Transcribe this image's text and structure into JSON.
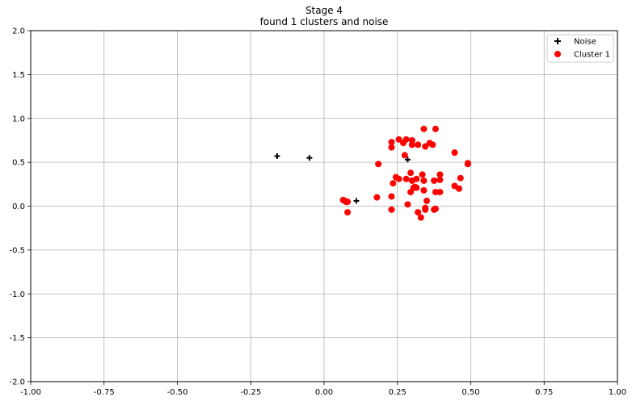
{
  "chart_data": {
    "type": "scatter",
    "title": "Stage 4",
    "subtitle": "found 1 clusters and noise",
    "xlabel": "",
    "ylabel": "",
    "xlim": [
      -1.0,
      1.0
    ],
    "ylim": [
      -2.0,
      2.0
    ],
    "xticks": [
      "-1.00",
      "-0.75",
      "-0.50",
      "-0.25",
      "0.00",
      "0.25",
      "0.50",
      "0.75",
      "1.00"
    ],
    "yticks": [
      "2.0",
      "1.5",
      "1.0",
      "0.5",
      "0.0",
      "-0.5",
      "-1.0",
      "-1.5",
      "-2.0"
    ],
    "grid": true,
    "legend_position": "top-right",
    "series": [
      {
        "name": "Noise",
        "marker": "plus",
        "color": "#000000",
        "points": [
          [
            -0.16,
            0.57
          ],
          [
            -0.05,
            0.55
          ],
          [
            0.11,
            0.06
          ],
          [
            0.285,
            0.53
          ]
        ]
      },
      {
        "name": "Cluster 1",
        "marker": "circle",
        "color": "#ff0000",
        "points": [
          [
            0.065,
            0.07
          ],
          [
            0.07,
            0.06
          ],
          [
            0.075,
            0.05
          ],
          [
            0.08,
            0.05
          ],
          [
            0.08,
            -0.07
          ],
          [
            0.18,
            0.1
          ],
          [
            0.185,
            0.48
          ],
          [
            0.23,
            0.73
          ],
          [
            0.23,
            0.67
          ],
          [
            0.23,
            0.11
          ],
          [
            0.23,
            -0.04
          ],
          [
            0.235,
            0.26
          ],
          [
            0.245,
            0.33
          ],
          [
            0.255,
            0.31
          ],
          [
            0.255,
            0.76
          ],
          [
            0.27,
            0.72
          ],
          [
            0.275,
            0.58
          ],
          [
            0.28,
            0.31
          ],
          [
            0.28,
            0.76
          ],
          [
            0.285,
            0.02
          ],
          [
            0.295,
            0.38
          ],
          [
            0.295,
            0.16
          ],
          [
            0.3,
            0.7
          ],
          [
            0.3,
            0.75
          ],
          [
            0.3,
            0.29
          ],
          [
            0.305,
            0.21
          ],
          [
            0.31,
            0.22
          ],
          [
            0.315,
            0.21
          ],
          [
            0.315,
            0.31
          ],
          [
            0.32,
            0.7
          ],
          [
            0.32,
            -0.07
          ],
          [
            0.33,
            -0.13
          ],
          [
            0.335,
            0.36
          ],
          [
            0.34,
            0.88
          ],
          [
            0.34,
            0.29
          ],
          [
            0.34,
            0.18
          ],
          [
            0.345,
            0.68
          ],
          [
            0.345,
            -0.02
          ],
          [
            0.345,
            -0.04
          ],
          [
            0.35,
            0.06
          ],
          [
            0.36,
            0.72
          ],
          [
            0.37,
            0.7
          ],
          [
            0.375,
            0.29
          ],
          [
            0.375,
            -0.04
          ],
          [
            0.38,
            0.88
          ],
          [
            0.38,
            -0.03
          ],
          [
            0.38,
            0.16
          ],
          [
            0.395,
            0.16
          ],
          [
            0.395,
            0.36
          ],
          [
            0.395,
            0.3
          ],
          [
            0.445,
            0.61
          ],
          [
            0.445,
            0.23
          ],
          [
            0.46,
            0.2
          ],
          [
            0.465,
            0.32
          ],
          [
            0.49,
            0.48
          ],
          [
            0.49,
            0.49
          ]
        ]
      }
    ]
  }
}
